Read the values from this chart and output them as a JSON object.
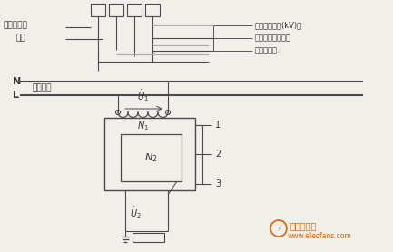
{
  "bg_color": "#f0efea",
  "line_color": "#4a4a4a",
  "text_color": "#333333",
  "labels_left_0": "电压互感器",
  "labels_left_1": "相数",
  "labels_right_0": "一次额定电压(kV)。",
  "labels_right_1": "鐵芯及绕组结构。",
  "labels_right_2": "绝缘结构。.",
  "N_label": "N",
  "L_label": "L",
  "primary_label": "一次线路",
  "watermark_text": "电子发烧友",
  "watermark_url": "www.elecfans.com",
  "watermark_color": "#d4650a"
}
